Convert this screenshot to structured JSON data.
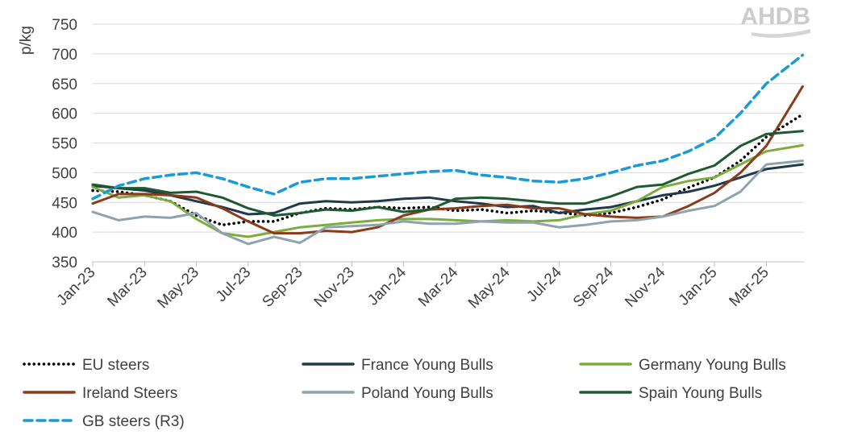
{
  "logo": {
    "text": "AHDB",
    "color": "#c8c8c8"
  },
  "chart_data": {
    "type": "line",
    "ylabel": "p/kg",
    "xlabel": "",
    "title": "",
    "ylim": [
      350,
      750
    ],
    "yticks": [
      350,
      400,
      450,
      500,
      550,
      600,
      650,
      700,
      750
    ],
    "xtick_labels": [
      "Jan-23",
      "Mar-23",
      "May-23",
      "Jul-23",
      "Sep-23",
      "Nov-23",
      "Jan-24",
      "Mar-24",
      "May-24",
      "Jul-24",
      "Sep-24",
      "Nov-24",
      "Jan-25",
      "Mar-25"
    ],
    "x_range_months": [
      0,
      27.45
    ],
    "grid": true,
    "legend_position": "bottom",
    "series": [
      {
        "name": "EU steers",
        "color": "#000000",
        "style": "dotted",
        "x": [
          0,
          1,
          2,
          3,
          4,
          5,
          6,
          7,
          8,
          9,
          10,
          11,
          12,
          13,
          14,
          15,
          16,
          17,
          18,
          19,
          20,
          21,
          22,
          23,
          24,
          25,
          26,
          27.4
        ],
        "values": [
          470,
          468,
          462,
          452,
          428,
          412,
          418,
          418,
          432,
          440,
          438,
          442,
          440,
          442,
          436,
          438,
          432,
          436,
          433,
          428,
          432,
          442,
          455,
          475,
          492,
          520,
          560,
          598
        ]
      },
      {
        "name": "France Young Bulls",
        "color": "#1f3a4a",
        "style": "solid",
        "x": [
          0,
          1,
          2,
          3,
          4,
          5,
          6,
          7,
          8,
          9,
          10,
          11,
          12,
          13,
          14,
          15,
          16,
          17,
          18,
          19,
          20,
          21,
          22,
          23,
          24,
          25,
          26,
          27.4
        ],
        "values": [
          478,
          474,
          470,
          462,
          452,
          442,
          430,
          432,
          448,
          452,
          450,
          452,
          456,
          458,
          452,
          448,
          442,
          444,
          432,
          438,
          442,
          452,
          462,
          468,
          478,
          492,
          506,
          514
        ]
      },
      {
        "name": "Germany Young Bulls",
        "color": "#7cad3c",
        "style": "solid",
        "x": [
          0,
          1,
          2,
          3,
          4,
          5,
          6,
          7,
          8,
          9,
          10,
          11,
          12,
          13,
          14,
          15,
          16,
          17,
          18,
          19,
          20,
          21,
          22,
          23,
          24,
          25,
          26,
          27.4
        ],
        "values": [
          476,
          458,
          462,
          452,
          422,
          398,
          392,
          400,
          408,
          412,
          416,
          420,
          422,
          422,
          420,
          418,
          420,
          418,
          420,
          430,
          436,
          452,
          476,
          486,
          492,
          514,
          536,
          546
        ]
      },
      {
        "name": "Ireland Steers",
        "color": "#8b3a1a",
        "style": "solid",
        "x": [
          0,
          1,
          2,
          3,
          4,
          5,
          6,
          7,
          8,
          9,
          10,
          11,
          12,
          13,
          14,
          15,
          16,
          17,
          18,
          19,
          20,
          21,
          22,
          23,
          24,
          25,
          26,
          27.4
        ],
        "values": [
          448,
          464,
          464,
          462,
          458,
          440,
          418,
          398,
          398,
          402,
          400,
          408,
          428,
          438,
          440,
          444,
          446,
          440,
          440,
          430,
          426,
          424,
          426,
          444,
          466,
          500,
          545,
          645
        ]
      },
      {
        "name": "Poland Young Bulls",
        "color": "#8ea3b0",
        "style": "solid",
        "x": [
          0,
          1,
          2,
          3,
          4,
          5,
          6,
          7,
          8,
          9,
          10,
          11,
          12,
          13,
          14,
          15,
          16,
          17,
          18,
          19,
          20,
          21,
          22,
          23,
          24,
          25,
          26,
          27.4
        ],
        "values": [
          434,
          420,
          426,
          424,
          432,
          398,
          380,
          392,
          382,
          408,
          410,
          412,
          418,
          414,
          414,
          418,
          416,
          416,
          408,
          412,
          418,
          420,
          426,
          436,
          444,
          468,
          514,
          520
        ]
      },
      {
        "name": "Spain Young Bulls",
        "color": "#1e5a30",
        "style": "solid",
        "x": [
          0,
          1,
          2,
          3,
          4,
          5,
          6,
          7,
          8,
          9,
          10,
          11,
          12,
          13,
          14,
          15,
          16,
          17,
          18,
          19,
          20,
          21,
          22,
          23,
          24,
          25,
          26,
          27.4
        ],
        "values": [
          480,
          474,
          474,
          466,
          468,
          458,
          440,
          428,
          432,
          438,
          436,
          442,
          434,
          438,
          456,
          458,
          456,
          452,
          448,
          448,
          460,
          476,
          480,
          498,
          512,
          545,
          565,
          570
        ]
      },
      {
        "name": "GB steers (R3)",
        "color": "#1a9ad6",
        "style": "dashed",
        "x": [
          0,
          1,
          2,
          3,
          4,
          5,
          6,
          7,
          8,
          9,
          10,
          11,
          12,
          13,
          14,
          15,
          16,
          17,
          18,
          19,
          20,
          21,
          22,
          23,
          24,
          25,
          26,
          27.4
        ],
        "values": [
          456,
          478,
          490,
          496,
          500,
          490,
          476,
          464,
          484,
          490,
          490,
          494,
          498,
          502,
          504,
          496,
          492,
          486,
          484,
          490,
          500,
          512,
          520,
          536,
          558,
          600,
          650,
          698
        ]
      }
    ]
  }
}
